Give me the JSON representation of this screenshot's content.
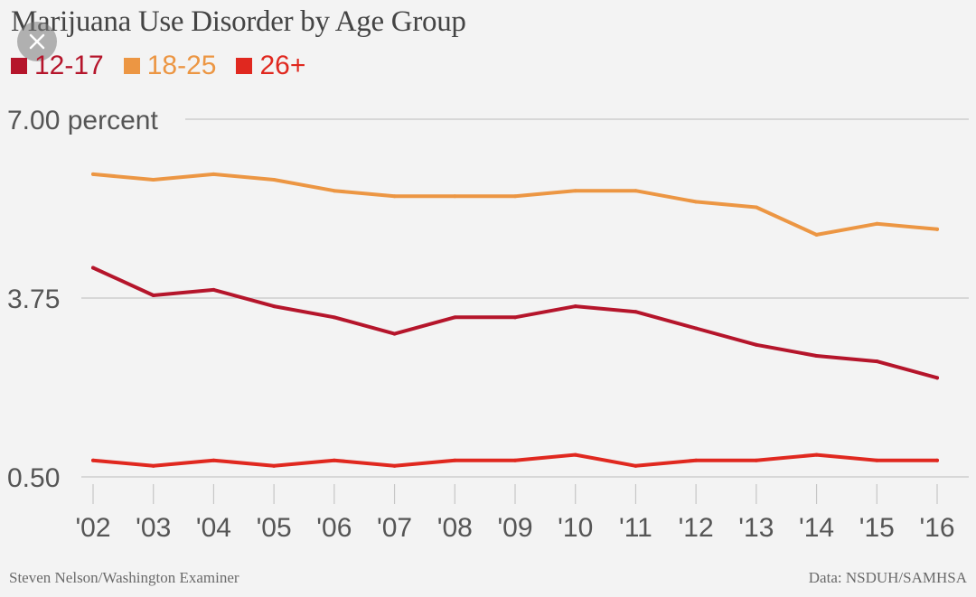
{
  "chart_data": {
    "type": "line",
    "title": "Marijuana Use Disorder by Age Group",
    "categories": [
      "'02",
      "'03",
      "'04",
      "'05",
      "'06",
      "'07",
      "'08",
      "'09",
      "'10",
      "'11",
      "'12",
      "'13",
      "'14",
      "'15",
      "'16"
    ],
    "series": [
      {
        "name": "12-17",
        "color": "#b5152b",
        "values": [
          4.3,
          3.8,
          3.9,
          3.6,
          3.4,
          3.1,
          3.4,
          3.4,
          3.6,
          3.5,
          3.2,
          2.9,
          2.7,
          2.6,
          2.3
        ]
      },
      {
        "name": "18-25",
        "color": "#ec9643",
        "values": [
          6.0,
          5.9,
          6.0,
          5.9,
          5.7,
          5.6,
          5.6,
          5.6,
          5.7,
          5.7,
          5.5,
          5.4,
          4.9,
          5.1,
          5.0
        ]
      },
      {
        "name": "26+",
        "color": "#e0281f",
        "values": [
          0.8,
          0.7,
          0.8,
          0.7,
          0.8,
          0.7,
          0.8,
          0.8,
          0.9,
          0.7,
          0.8,
          0.8,
          0.9,
          0.8,
          0.8
        ]
      }
    ],
    "yticks": [
      {
        "value": 7.0,
        "label": "7.00 percent"
      },
      {
        "value": 3.75,
        "label": "3.75"
      },
      {
        "value": 0.5,
        "label": "0.50"
      }
    ],
    "ylim": [
      0.5,
      7.0
    ],
    "grid": true,
    "legend_position": "top-left"
  },
  "footer": {
    "credit": "Steven Nelson/Washington Examiner",
    "source": "Data: NSDUH/SAMHSA"
  },
  "icons": {
    "close": "close-icon"
  }
}
